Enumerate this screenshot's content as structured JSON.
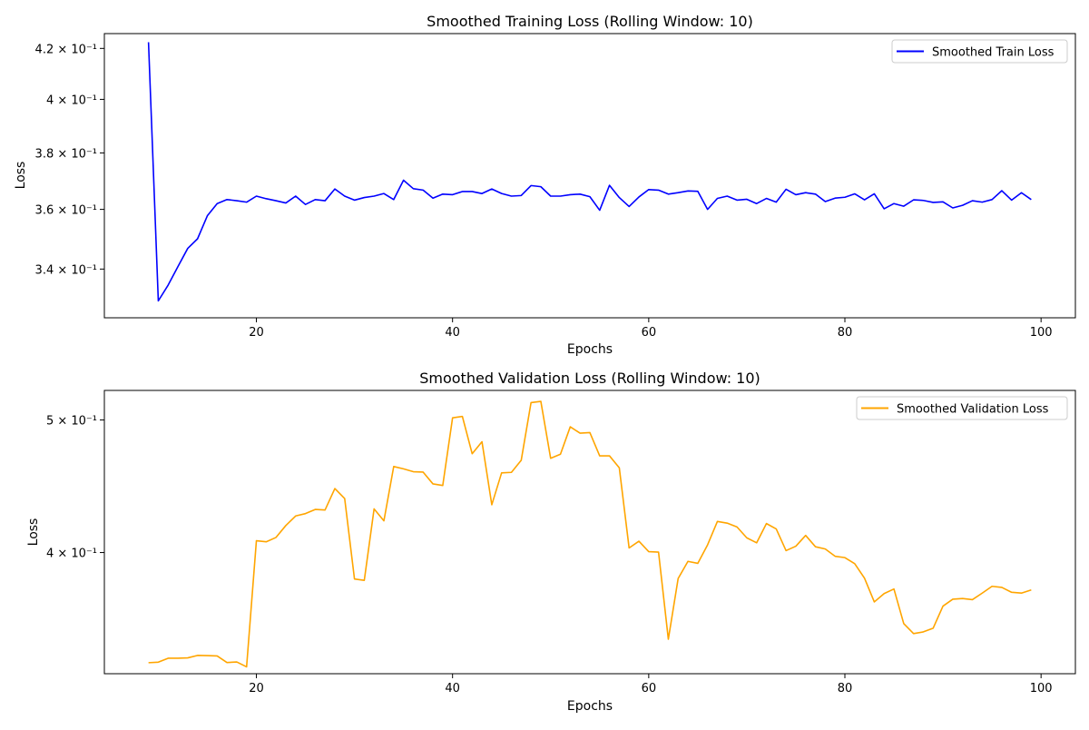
{
  "chart_data": [
    {
      "type": "line",
      "title": "Smoothed Training Loss (Rolling Window: 10)",
      "xlabel": "Epochs",
      "ylabel": "Loss",
      "yscale": "log",
      "xlim": [
        4.5,
        103.5
      ],
      "ylim": [
        0.3245,
        0.426
      ],
      "xticks": [
        20,
        40,
        60,
        80,
        100
      ],
      "yticks": [
        {
          "value": 0.34,
          "label": "3.4 × 10⁻¹"
        },
        {
          "value": 0.36,
          "label": "3.6 × 10⁻¹"
        },
        {
          "value": 0.38,
          "label": "3.8 × 10⁻¹"
        },
        {
          "value": 0.4,
          "label": "4 × 10⁻¹"
        },
        {
          "value": 0.42,
          "label": "4.2 × 10⁻¹"
        }
      ],
      "grid": false,
      "legend_position": "top-right",
      "x_start": 9,
      "series": [
        {
          "name": "Smoothed Train Loss",
          "color": "#0000ff",
          "values": [
            0.4225,
            0.3298,
            0.3348,
            0.3408,
            0.3468,
            0.35,
            0.3578,
            0.362,
            0.3634,
            0.363,
            0.3625,
            0.3646,
            0.3637,
            0.363,
            0.3622,
            0.3646,
            0.3617,
            0.3634,
            0.363,
            0.3671,
            0.3646,
            0.3632,
            0.3641,
            0.3646,
            0.3655,
            0.3634,
            0.3702,
            0.3672,
            0.3667,
            0.3639,
            0.3653,
            0.3651,
            0.3662,
            0.3662,
            0.3655,
            0.3671,
            0.3655,
            0.3646,
            0.3648,
            0.3683,
            0.3679,
            0.3646,
            0.3646,
            0.3651,
            0.3653,
            0.3644,
            0.3597,
            0.3684,
            0.3641,
            0.361,
            0.3643,
            0.3669,
            0.3667,
            0.3653,
            0.3658,
            0.3664,
            0.3663,
            0.36,
            0.3638,
            0.3646,
            0.3632,
            0.3635,
            0.362,
            0.3638,
            0.3625,
            0.367,
            0.3651,
            0.3658,
            0.3653,
            0.3627,
            0.3639,
            0.3642,
            0.3654,
            0.3633,
            0.3654,
            0.3602,
            0.362,
            0.3611,
            0.3633,
            0.3631,
            0.3624,
            0.3626,
            0.3605,
            0.3614,
            0.363,
            0.3625,
            0.3634,
            0.3665,
            0.3632,
            0.3658,
            0.3634
          ]
        }
      ]
    },
    {
      "type": "line",
      "title": "Smoothed Validation Loss (Rolling Window: 10)",
      "xlabel": "Epochs",
      "ylabel": "Loss",
      "yscale": "log",
      "xlim": [
        4.5,
        103.5
      ],
      "ylim": [
        0.3262,
        0.5255
      ],
      "xticks": [
        20,
        40,
        60,
        80,
        100
      ],
      "yticks": [
        {
          "value": 0.4,
          "label": "4 × 10⁻¹"
        },
        {
          "value": 0.5,
          "label": "5 × 10⁻¹"
        }
      ],
      "grid": false,
      "legend_position": "top-right",
      "x_start": 9,
      "series": [
        {
          "name": "Smoothed Validation Loss",
          "color": "#ffa500",
          "values": [
            0.3323,
            0.3326,
            0.3348,
            0.3348,
            0.335,
            0.3364,
            0.3363,
            0.3361,
            0.3324,
            0.3327,
            0.33,
            0.408,
            0.4073,
            0.4103,
            0.4186,
            0.4254,
            0.4271,
            0.4301,
            0.4297,
            0.4455,
            0.4381,
            0.3826,
            0.3817,
            0.4305,
            0.4219,
            0.4623,
            0.4605,
            0.4583,
            0.458,
            0.449,
            0.4478,
            0.5018,
            0.503,
            0.4724,
            0.482,
            0.4335,
            0.4574,
            0.4578,
            0.4672,
            0.5148,
            0.5159,
            0.4688,
            0.472,
            0.4943,
            0.489,
            0.4895,
            0.4707,
            0.4707,
            0.4613,
            0.4031,
            0.4077,
            0.4006,
            0.4003,
            0.3457,
            0.3829,
            0.3941,
            0.3928,
            0.4052,
            0.4215,
            0.4203,
            0.4176,
            0.41,
            0.4066,
            0.42,
            0.4162,
            0.4013,
            0.4043,
            0.4117,
            0.4039,
            0.4024,
            0.3975,
            0.3966,
            0.3926,
            0.3831,
            0.3681,
            0.3733,
            0.3762,
            0.3549,
            0.349,
            0.35,
            0.3522,
            0.3655,
            0.3698,
            0.3702,
            0.3695,
            0.3736,
            0.3779,
            0.3772,
            0.3741,
            0.3736,
            0.3756
          ]
        }
      ]
    }
  ]
}
